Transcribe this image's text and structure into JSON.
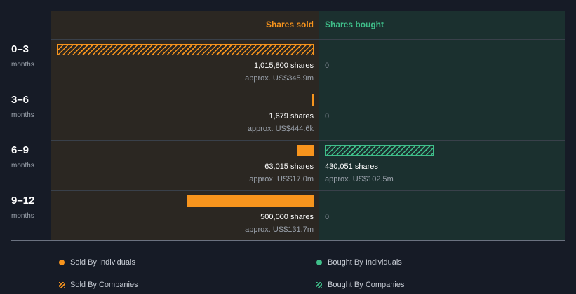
{
  "header": {
    "sold_label": "Shares sold",
    "bought_label": "Shares bought"
  },
  "colors": {
    "sold": "#f7941d",
    "bought": "#3fbf8a"
  },
  "chart_data": {
    "type": "bar",
    "categories": [
      "0–3",
      "3–6",
      "6–9",
      "9–12"
    ],
    "category_unit": "months",
    "scale_max_shares": 1015800,
    "series": [
      {
        "name": "Sold By Individuals",
        "values": [
          0,
          0,
          63015,
          500000
        ]
      },
      {
        "name": "Sold By Companies",
        "values": [
          1015800,
          1679,
          0,
          0
        ]
      },
      {
        "name": "Bought By Individuals",
        "values": [
          0,
          0,
          0,
          0
        ]
      },
      {
        "name": "Bought By Companies",
        "values": [
          0,
          0,
          430051,
          0
        ]
      }
    ],
    "rows": [
      {
        "period": "0–3",
        "unit": "months",
        "sold_shares": "1,015,800 shares",
        "sold_approx": "approx. US$345.9m",
        "bought_shares": "",
        "bought_approx": "",
        "bought_zero": "0"
      },
      {
        "period": "3–6",
        "unit": "months",
        "sold_shares": "1,679 shares",
        "sold_approx": "approx. US$444.6k",
        "bought_shares": "",
        "bought_approx": "",
        "bought_zero": "0"
      },
      {
        "period": "6–9",
        "unit": "months",
        "sold_shares": "63,015 shares",
        "sold_approx": "approx. US$17.0m",
        "bought_shares": "430,051 shares",
        "bought_approx": "approx. US$102.5m",
        "bought_zero": ""
      },
      {
        "period": "9–12",
        "unit": "months",
        "sold_shares": "500,000 shares",
        "sold_approx": "approx. US$131.7m",
        "bought_shares": "",
        "bought_approx": "",
        "bought_zero": "0"
      }
    ]
  },
  "legend": {
    "sold_individuals": "Sold By Individuals",
    "sold_companies": "Sold By Companies",
    "bought_individuals": "Bought By Individuals",
    "bought_companies": "Bought By Companies"
  }
}
